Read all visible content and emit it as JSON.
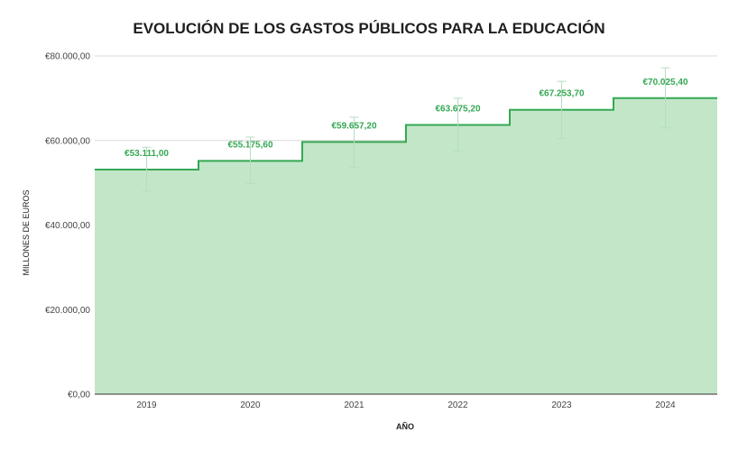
{
  "chart_data": {
    "type": "area",
    "step": true,
    "title": "EVOLUCIÓN DE LOS GASTOS PÚBLICOS PARA LA EDUCACIÓN",
    "xlabel": "AÑO",
    "ylabel": "MILLONES DE EUROS",
    "categories": [
      "2019",
      "2020",
      "2021",
      "2022",
      "2023",
      "2024"
    ],
    "values": [
      53111.0,
      55175.6,
      59657.2,
      63675.2,
      67253.7,
      70025.4
    ],
    "data_labels": [
      "€53.111,00",
      "€55.175,60",
      "€59.657,20",
      "€63.675,20",
      "€67.253,70",
      "€70.025,40"
    ],
    "error_bars": [
      {
        "low": 48000,
        "high": 58400
      },
      {
        "low": 49800,
        "high": 60800
      },
      {
        "low": 53700,
        "high": 65500
      },
      {
        "low": 57500,
        "high": 70000
      },
      {
        "low": 60500,
        "high": 74000
      },
      {
        "low": 63000,
        "high": 77200
      }
    ],
    "ylim": [
      0,
      80000
    ],
    "yticks": [
      0,
      20000,
      40000,
      60000,
      80000
    ],
    "ytick_labels": [
      "€0,00",
      "€20.000,00",
      "€40.000,00",
      "€60.000,00",
      "€80.000,00"
    ],
    "grid": true,
    "legend": "none",
    "colors": {
      "fill": "#c3e6c9",
      "line": "#34a853",
      "label": "#34a853",
      "error_bar": "#b7dcc0",
      "grid": "#d9d9d9",
      "axis": "#333333"
    }
  }
}
